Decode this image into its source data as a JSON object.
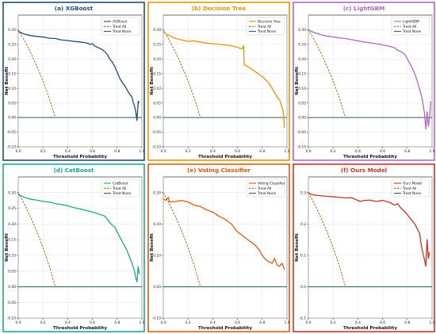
{
  "chart_data": [
    {
      "type": "line",
      "title": "(a) XGBoost",
      "xlabel": "Threshold Probability",
      "ylabel": "Net Benefit",
      "xlim": [
        0.0,
        1.0
      ],
      "ylim": [
        -0.1,
        0.35
      ],
      "xticks": [
        "0.0",
        "0.2",
        "0.4",
        "0.6",
        "0.8",
        "1.0"
      ],
      "yticks": [
        "-0.10",
        "-0.05",
        "0.00",
        "0.05",
        "0.10",
        "0.15",
        "0.20",
        "0.25",
        "0.30"
      ],
      "legend_position": "top-right",
      "theme_color": "#1f4e79",
      "series": [
        {
          "name": "XGBoost",
          "color": "#1f4e79",
          "style": "solid",
          "x": [
            0.0,
            0.02,
            0.05,
            0.1,
            0.15,
            0.2,
            0.25,
            0.3,
            0.35,
            0.4,
            0.45,
            0.5,
            0.55,
            0.58,
            0.6,
            0.62,
            0.64,
            0.66,
            0.68,
            0.7,
            0.72,
            0.74,
            0.76,
            0.78,
            0.8,
            0.82,
            0.84,
            0.86,
            0.88,
            0.9,
            0.92,
            0.93,
            0.94,
            0.95,
            0.96,
            0.97,
            0.98
          ],
          "y": [
            0.295,
            0.29,
            0.285,
            0.28,
            0.277,
            0.275,
            0.271,
            0.27,
            0.265,
            0.263,
            0.26,
            0.258,
            0.255,
            0.25,
            0.252,
            0.244,
            0.24,
            0.236,
            0.232,
            0.225,
            0.215,
            0.2,
            0.19,
            0.175,
            0.155,
            0.135,
            0.12,
            0.11,
            0.095,
            0.08,
            0.07,
            0.05,
            0.04,
            0.02,
            -0.01,
            0.055,
            0.05
          ]
        },
        {
          "name": "Treat All",
          "color": "#b5651d",
          "style": "dashed",
          "x": [
            0.0,
            0.05,
            0.1,
            0.15,
            0.2,
            0.25,
            0.3
          ],
          "y": [
            0.3,
            0.263,
            0.222,
            0.176,
            0.125,
            0.067,
            0.0
          ]
        },
        {
          "name": "Treat None",
          "color": "#2e5e5e",
          "style": "solid",
          "x": [
            0.0,
            1.0
          ],
          "y": [
            0.0,
            0.0
          ]
        }
      ]
    },
    {
      "type": "line",
      "title": "(b) Decision Tree",
      "xlabel": "Threshold Probability",
      "ylabel": "Net Benefit",
      "xlim": [
        0.0,
        1.0
      ],
      "ylim": [
        -0.1,
        0.35
      ],
      "xticks": [
        "0.0",
        "0.2",
        "0.4",
        "0.6",
        "0.8",
        "1.0"
      ],
      "yticks": [
        "-0.10",
        "-0.05",
        "0.00",
        "0.05",
        "0.10",
        "0.15",
        "0.20",
        "0.25",
        "0.30"
      ],
      "legend_position": "top-right",
      "theme_color": "#e69500",
      "series": [
        {
          "name": "Decision Tree",
          "color": "#e69500",
          "style": "solid",
          "x": [
            0.0,
            0.02,
            0.05,
            0.1,
            0.15,
            0.2,
            0.25,
            0.3,
            0.35,
            0.4,
            0.45,
            0.5,
            0.55,
            0.6,
            0.62,
            0.64,
            0.65,
            0.655,
            0.7,
            0.75,
            0.8,
            0.85,
            0.88,
            0.9,
            0.92,
            0.94,
            0.95,
            0.96,
            0.97,
            0.98
          ],
          "y": [
            0.295,
            0.285,
            0.28,
            0.27,
            0.265,
            0.26,
            0.262,
            0.258,
            0.254,
            0.252,
            0.25,
            0.248,
            0.245,
            0.24,
            0.236,
            0.235,
            0.245,
            0.18,
            0.17,
            0.155,
            0.14,
            0.12,
            0.1,
            0.085,
            0.07,
            0.06,
            0.05,
            0.035,
            0.02,
            -0.035
          ]
        },
        {
          "name": "Treat All",
          "color": "#b5651d",
          "style": "dashed",
          "x": [
            0.0,
            0.05,
            0.1,
            0.15,
            0.2,
            0.25,
            0.3
          ],
          "y": [
            0.3,
            0.263,
            0.222,
            0.176,
            0.125,
            0.067,
            0.0
          ]
        },
        {
          "name": "Treat None",
          "color": "#2e5e5e",
          "style": "solid",
          "x": [
            0.0,
            1.0
          ],
          "y": [
            0.0,
            0.0
          ]
        }
      ]
    },
    {
      "type": "line",
      "title": "(c) LightGBM",
      "xlabel": "Threshold Probability",
      "ylabel": "Net Benefit",
      "xlim": [
        0.0,
        1.0
      ],
      "ylim": [
        -0.1,
        0.35
      ],
      "xticks": [
        "0.0",
        "0.2",
        "0.4",
        "0.6",
        "0.8",
        "1.0"
      ],
      "yticks": [
        "-0.10",
        "-0.05",
        "0.00",
        "0.05",
        "0.10",
        "0.15",
        "0.20",
        "0.25",
        "0.30"
      ],
      "legend_position": "top-right",
      "theme_color": "#b066c8",
      "series": [
        {
          "name": "LightGBM",
          "color": "#b066c8",
          "style": "solid",
          "x": [
            0.0,
            0.02,
            0.05,
            0.1,
            0.15,
            0.2,
            0.25,
            0.3,
            0.35,
            0.4,
            0.45,
            0.5,
            0.55,
            0.6,
            0.65,
            0.7,
            0.72,
            0.75,
            0.78,
            0.8,
            0.82,
            0.84,
            0.86,
            0.88,
            0.9,
            0.92,
            0.93,
            0.94,
            0.95,
            0.96,
            0.97,
            0.98,
            0.99
          ],
          "y": [
            0.3,
            0.295,
            0.29,
            0.283,
            0.278,
            0.275,
            0.272,
            0.27,
            0.266,
            0.262,
            0.258,
            0.255,
            0.252,
            0.248,
            0.244,
            0.238,
            0.23,
            0.225,
            0.215,
            0.2,
            0.185,
            0.17,
            0.15,
            0.125,
            0.095,
            0.065,
            0.04,
            0.01,
            -0.04,
            0.02,
            -0.03,
            0.0,
            0.055
          ]
        },
        {
          "name": "Treat All",
          "color": "#b5651d",
          "style": "dashed",
          "x": [
            0.0,
            0.05,
            0.1,
            0.15,
            0.2,
            0.25,
            0.3
          ],
          "y": [
            0.3,
            0.263,
            0.222,
            0.176,
            0.125,
            0.067,
            0.0
          ]
        },
        {
          "name": "Treat None",
          "color": "#2e5e5e",
          "style": "solid",
          "x": [
            0.0,
            1.0
          ],
          "y": [
            0.0,
            0.0
          ]
        }
      ]
    },
    {
      "type": "line",
      "title": "(d) CatBoost",
      "xlabel": "Threshold Probability",
      "ylabel": "Net Benefit",
      "xlim": [
        0.0,
        1.0
      ],
      "ylim": [
        -0.1,
        0.35
      ],
      "xticks": [
        "0.0",
        "0.2",
        "0.4",
        "0.6",
        "0.8",
        "1.0"
      ],
      "yticks": [
        "-0.10",
        "-0.05",
        "0.00",
        "0.05",
        "0.10",
        "0.15",
        "0.20",
        "0.25",
        "0.30"
      ],
      "legend_position": "top-right",
      "theme_color": "#1aaa8a",
      "series": [
        {
          "name": "CatBoost",
          "color": "#1aaa8a",
          "style": "solid",
          "x": [
            0.0,
            0.02,
            0.05,
            0.1,
            0.15,
            0.2,
            0.25,
            0.3,
            0.35,
            0.4,
            0.45,
            0.5,
            0.55,
            0.6,
            0.65,
            0.7,
            0.72,
            0.75,
            0.78,
            0.8,
            0.82,
            0.84,
            0.86,
            0.88,
            0.9,
            0.92,
            0.94,
            0.95,
            0.96,
            0.97,
            0.98
          ],
          "y": [
            0.295,
            0.29,
            0.285,
            0.279,
            0.276,
            0.272,
            0.27,
            0.265,
            0.262,
            0.258,
            0.252,
            0.248,
            0.243,
            0.238,
            0.232,
            0.225,
            0.215,
            0.2,
            0.19,
            0.175,
            0.16,
            0.145,
            0.13,
            0.115,
            0.095,
            0.075,
            0.05,
            0.03,
            0.015,
            0.065,
            0.04
          ]
        },
        {
          "name": "Treat All",
          "color": "#b5651d",
          "style": "dashed",
          "x": [
            0.0,
            0.05,
            0.1,
            0.15,
            0.2,
            0.25,
            0.3
          ],
          "y": [
            0.3,
            0.263,
            0.222,
            0.176,
            0.125,
            0.067,
            0.0
          ]
        },
        {
          "name": "Treat None",
          "color": "#2e5e5e",
          "style": "solid",
          "x": [
            0.0,
            1.0
          ],
          "y": [
            0.0,
            0.0
          ]
        }
      ]
    },
    {
      "type": "line",
      "title": "(e) Voting Classifier",
      "xlabel": "Threshold Probability",
      "ylabel": "Net Benefit",
      "xlim": [
        0.0,
        1.0
      ],
      "ylim": [
        -0.1,
        0.35
      ],
      "xticks": [
        "0.0",
        "0.2",
        "0.4",
        "0.6",
        "0.8",
        "1.0"
      ],
      "yticks": [
        "-0.10",
        "0.00",
        "0.10",
        "0.20",
        "0.30"
      ],
      "legend_position": "top-right",
      "theme_color": "#e05a0c",
      "series": [
        {
          "name": "Voting Classifier",
          "color": "#e05a0c",
          "style": "solid",
          "x": [
            0.0,
            0.02,
            0.04,
            0.05,
            0.1,
            0.15,
            0.2,
            0.25,
            0.3,
            0.35,
            0.4,
            0.45,
            0.5,
            0.55,
            0.6,
            0.65,
            0.7,
            0.72,
            0.75,
            0.78,
            0.8,
            0.82,
            0.85,
            0.88,
            0.9,
            0.92,
            0.94,
            0.96,
            0.98
          ],
          "y": [
            0.28,
            0.275,
            0.285,
            0.27,
            0.272,
            0.275,
            0.27,
            0.26,
            0.256,
            0.245,
            0.238,
            0.225,
            0.215,
            0.2,
            0.175,
            0.16,
            0.145,
            0.14,
            0.13,
            0.115,
            0.1,
            0.09,
            0.08,
            0.075,
            0.09,
            0.07,
            0.065,
            0.075,
            0.055
          ]
        },
        {
          "name": "Treat All",
          "color": "#b5651d",
          "style": "dashed",
          "x": [
            0.0,
            0.05,
            0.1,
            0.15,
            0.2,
            0.25,
            0.3
          ],
          "y": [
            0.3,
            0.263,
            0.222,
            0.176,
            0.125,
            0.067,
            0.0
          ]
        },
        {
          "name": "Treat None",
          "color": "#2e5e5e",
          "style": "solid",
          "x": [
            0.0,
            1.0
          ],
          "y": [
            0.0,
            0.0
          ]
        }
      ]
    },
    {
      "type": "line",
      "title": "(f) Ours Model",
      "xlabel": "Threshold Probability",
      "ylabel": "Net Benefit",
      "xlim": [
        0.0,
        1.0
      ],
      "ylim": [
        -0.1,
        0.35
      ],
      "xticks": [
        "0.0",
        "0.2",
        "0.4",
        "0.6",
        "0.8",
        "1.0"
      ],
      "yticks": [
        "-0.1",
        "0.0",
        "0.1",
        "0.2",
        "0.3"
      ],
      "legend_position": "top-right",
      "theme_color": "#cc3322",
      "series": [
        {
          "name": "Ours Model",
          "color": "#cc3322",
          "style": "solid",
          "x": [
            0.0,
            0.02,
            0.05,
            0.1,
            0.15,
            0.2,
            0.25,
            0.3,
            0.35,
            0.4,
            0.42,
            0.45,
            0.5,
            0.55,
            0.6,
            0.65,
            0.7,
            0.72,
            0.75,
            0.78,
            0.8,
            0.82,
            0.84,
            0.86,
            0.88,
            0.9,
            0.91,
            0.92,
            0.93,
            0.94,
            0.95,
            0.96,
            0.97,
            0.98
          ],
          "y": [
            0.3,
            0.295,
            0.292,
            0.29,
            0.288,
            0.287,
            0.285,
            0.283,
            0.284,
            0.275,
            0.272,
            0.275,
            0.276,
            0.272,
            0.275,
            0.27,
            0.26,
            0.265,
            0.25,
            0.24,
            0.23,
            0.22,
            0.21,
            0.2,
            0.185,
            0.17,
            0.14,
            0.12,
            0.1,
            0.085,
            0.065,
            0.15,
            0.09,
            0.11
          ]
        },
        {
          "name": "Treat All",
          "color": "#b5651d",
          "style": "dashed",
          "x": [
            0.0,
            0.05,
            0.1,
            0.15,
            0.2,
            0.25,
            0.3
          ],
          "y": [
            0.3,
            0.263,
            0.222,
            0.176,
            0.125,
            0.067,
            0.0
          ]
        },
        {
          "name": "Treat None",
          "color": "#2e5e5e",
          "style": "solid",
          "x": [
            0.0,
            1.0
          ],
          "y": [
            0.0,
            0.0
          ]
        }
      ]
    }
  ]
}
